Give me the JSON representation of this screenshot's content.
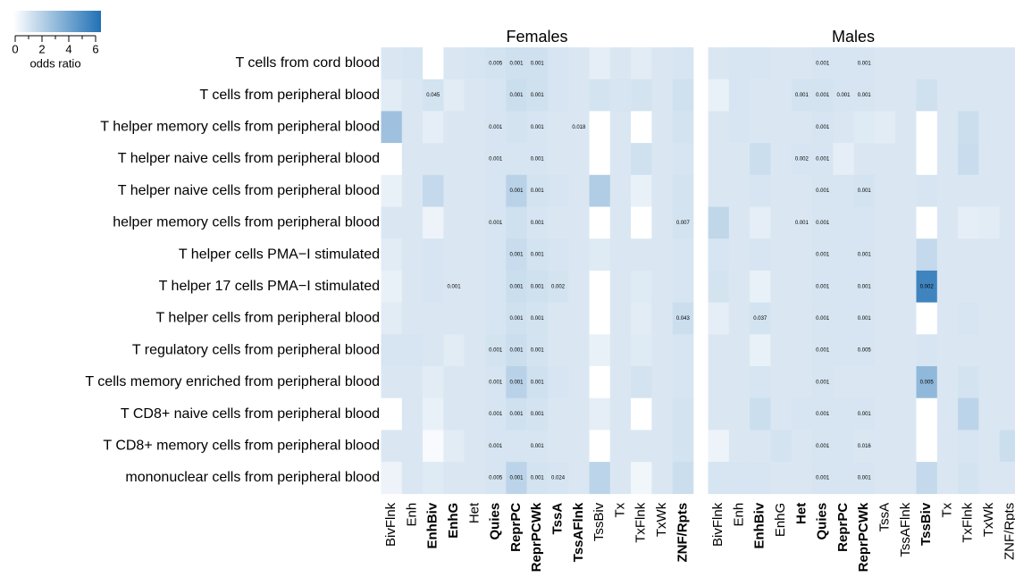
{
  "legend": {
    "label": "odds ratio",
    "lim": [
      0,
      6
    ],
    "ticks": [
      0,
      2,
      4,
      6
    ],
    "colors": [
      "#ffffff",
      "#2171b5"
    ]
  },
  "chart_data": [
    {
      "type": "heatmap",
      "title": "Females",
      "rows": [
        "T cells from cord blood",
        "T cells from peripheral blood",
        "T helper memory cells from peripheral blood",
        "T helper naive cells from peripheral blood",
        "T helper naive cells from peripheral blood",
        "helper memory cells from peripheral blood",
        "T helper cells PMA−I stimulated",
        "T helper 17 cells PMA−I stimulated",
        "T helper cells from peripheral blood",
        "T regulatory cells from peripheral blood",
        "T cells memory enriched from peripheral blood",
        "T CD8+ naive cells from peripheral blood",
        "T CD8+ memory cells from peripheral blood",
        "mononuclear cells from peripheral blood"
      ],
      "columns": [
        "BivFlnk",
        "Enh",
        "EnhBiv",
        "EnhG",
        "Het",
        "Quies",
        "ReprPC",
        "ReprPCWk",
        "TssA",
        "TssAFlnk",
        "TssBiv",
        "Tx",
        "TxFlnk",
        "TxWk",
        "ZNF/Rpts"
      ],
      "bold": [
        false,
        false,
        true,
        true,
        false,
        true,
        true,
        true,
        true,
        true,
        false,
        false,
        false,
        false,
        true
      ],
      "values": [
        [
          1.0,
          1.1,
          0,
          1.0,
          1.1,
          1.2,
          1.3,
          1.3,
          1.1,
          1.0,
          0.7,
          1.0,
          0.8,
          1.0,
          1.1
        ],
        [
          0.8,
          1.0,
          1.2,
          0.8,
          1.0,
          1.1,
          1.4,
          1.3,
          1.1,
          1.0,
          1.2,
          1.1,
          1.2,
          1.0,
          1.3
        ],
        [
          2.6,
          1.0,
          0.7,
          1.0,
          1.0,
          1.1,
          1.2,
          1.1,
          1.0,
          1.0,
          0,
          1.0,
          0,
          1.0,
          1.2
        ],
        [
          0,
          1.0,
          1.0,
          1.0,
          1.0,
          1.1,
          1.1,
          1.1,
          1.0,
          1.0,
          0,
          1.0,
          1.3,
          1.0,
          1.1
        ],
        [
          0.6,
          1.0,
          1.6,
          1.0,
          1.0,
          1.1,
          1.9,
          1.2,
          1.1,
          1.0,
          2.1,
          1.0,
          0.6,
          1.0,
          1.2
        ],
        [
          1.0,
          1.0,
          0.5,
          1.0,
          1.0,
          1.1,
          1.3,
          1.1,
          1.0,
          1.0,
          0,
          1.0,
          0,
          1.0,
          1.2
        ],
        [
          0.8,
          1.0,
          1.1,
          1.0,
          1.0,
          1.1,
          1.5,
          1.2,
          1.1,
          1.0,
          0.9,
          1.0,
          1.0,
          1.0,
          1.1
        ],
        [
          0.6,
          1.0,
          1.1,
          1.0,
          1.0,
          1.1,
          1.4,
          1.3,
          1.2,
          1.0,
          0,
          1.0,
          0.9,
          1.0,
          1.1
        ],
        [
          0.8,
          1.0,
          1.0,
          1.0,
          1.0,
          1.1,
          1.3,
          1.2,
          1.0,
          1.0,
          0,
          1.0,
          0.8,
          1.0,
          1.4
        ],
        [
          1.1,
          1.1,
          1.0,
          0.8,
          1.0,
          1.2,
          1.4,
          1.2,
          1.0,
          1.0,
          0.6,
          1.0,
          0.9,
          1.0,
          1.1
        ],
        [
          1.0,
          1.0,
          0.8,
          1.0,
          1.0,
          1.1,
          1.9,
          1.3,
          1.1,
          1.0,
          0,
          1.0,
          1.2,
          1.0,
          1.1
        ],
        [
          0,
          1.0,
          0.6,
          1.0,
          1.0,
          1.1,
          1.3,
          1.2,
          1.0,
          1.0,
          0.7,
          1.0,
          0,
          1.0,
          1.2
        ],
        [
          1.0,
          1.0,
          0.2,
          0.8,
          1.0,
          1.1,
          1.1,
          1.1,
          1.0,
          1.0,
          0,
          1.0,
          1.0,
          1.0,
          1.2
        ],
        [
          0.5,
          1.0,
          0.9,
          1.0,
          1.0,
          1.1,
          1.8,
          1.2,
          1.1,
          1.0,
          1.8,
          1.0,
          0.4,
          1.0,
          1.4
        ]
      ],
      "annotations": [
        [
          null,
          null,
          null,
          null,
          null,
          "0.005",
          "0.001",
          "0.001",
          null,
          null,
          null,
          null,
          null,
          null,
          null
        ],
        [
          null,
          null,
          "0.045",
          null,
          null,
          null,
          "0.001",
          "0.001",
          null,
          null,
          null,
          null,
          null,
          null,
          null
        ],
        [
          null,
          null,
          null,
          null,
          null,
          "0.001",
          null,
          "0.001",
          null,
          "0.018",
          null,
          null,
          null,
          null,
          null
        ],
        [
          null,
          null,
          null,
          null,
          null,
          "0.001",
          null,
          "0.001",
          null,
          null,
          null,
          null,
          null,
          null,
          null
        ],
        [
          null,
          null,
          null,
          null,
          null,
          null,
          "0.001",
          "0.001",
          null,
          null,
          null,
          null,
          null,
          null,
          null
        ],
        [
          null,
          null,
          null,
          null,
          null,
          "0.001",
          null,
          "0.001",
          null,
          null,
          null,
          null,
          null,
          null,
          "0.007"
        ],
        [
          null,
          null,
          null,
          null,
          null,
          null,
          "0.001",
          "0.001",
          null,
          null,
          null,
          null,
          null,
          null,
          null
        ],
        [
          null,
          null,
          null,
          "0.001",
          null,
          null,
          "0.001",
          "0.001",
          "0.002",
          null,
          null,
          null,
          null,
          null,
          null
        ],
        [
          null,
          null,
          null,
          null,
          null,
          null,
          "0.001",
          "0.001",
          null,
          null,
          null,
          null,
          null,
          null,
          "0.043"
        ],
        [
          null,
          null,
          null,
          null,
          null,
          "0.001",
          "0.001",
          "0.001",
          null,
          null,
          null,
          null,
          null,
          null,
          null
        ],
        [
          null,
          null,
          null,
          null,
          null,
          "0.001",
          "0.001",
          "0.001",
          null,
          null,
          null,
          null,
          null,
          null,
          null
        ],
        [
          null,
          null,
          null,
          null,
          null,
          "0.001",
          "0.001",
          "0.001",
          null,
          null,
          null,
          null,
          null,
          null,
          null
        ],
        [
          null,
          null,
          null,
          null,
          null,
          "0.001",
          null,
          "0.001",
          null,
          null,
          null,
          null,
          null,
          null,
          null
        ],
        [
          null,
          null,
          null,
          null,
          null,
          "0.005",
          "0.001",
          "0.001",
          "0.024",
          null,
          null,
          null,
          null,
          null,
          null
        ]
      ]
    },
    {
      "type": "heatmap",
      "title": "Males",
      "columns": [
        "BivFlnk",
        "Enh",
        "EnhBiv",
        "EnhG",
        "Het",
        "Quies",
        "ReprPC",
        "ReprPCWk",
        "TssA",
        "TssAFlnk",
        "TssBiv",
        "Tx",
        "TxFlnk",
        "TxWk",
        "ZNF/Rpts"
      ],
      "bold": [
        false,
        false,
        true,
        false,
        true,
        true,
        true,
        true,
        false,
        false,
        true,
        false,
        false,
        false,
        false
      ],
      "values": [
        [
          1.0,
          1.1,
          1.1,
          1.0,
          1.0,
          1.1,
          1.1,
          1.1,
          1.0,
          1.0,
          1.0,
          1.0,
          1.0,
          1.0,
          1.0
        ],
        [
          0.6,
          1.1,
          1.0,
          1.0,
          1.2,
          1.2,
          1.1,
          1.1,
          1.0,
          1.0,
          1.3,
          1.0,
          1.0,
          1.0,
          1.0
        ],
        [
          1.0,
          1.1,
          1.0,
          1.0,
          1.0,
          1.1,
          1.0,
          0.9,
          0.8,
          1.0,
          0,
          1.0,
          1.4,
          1.0,
          1.0
        ],
        [
          1.0,
          1.0,
          1.4,
          1.0,
          1.1,
          1.1,
          0.7,
          1.0,
          1.0,
          1.0,
          0,
          1.0,
          1.5,
          1.0,
          1.0
        ],
        [
          1.0,
          1.0,
          1.1,
          1.0,
          1.0,
          1.1,
          1.1,
          1.2,
          1.0,
          1.0,
          1.1,
          1.0,
          1.0,
          1.0,
          1.0
        ],
        [
          1.7,
          1.0,
          0.7,
          1.0,
          1.0,
          1.1,
          1.1,
          1.1,
          1.0,
          1.0,
          0,
          1.0,
          0.7,
          0.8,
          1.0
        ],
        [
          1.1,
          1.0,
          1.1,
          1.0,
          1.0,
          1.1,
          1.1,
          1.1,
          1.0,
          1.0,
          1.6,
          1.0,
          1.0,
          1.0,
          1.0
        ],
        [
          1.2,
          1.0,
          0.6,
          1.0,
          1.0,
          1.1,
          1.1,
          1.1,
          1.0,
          1.0,
          5.2,
          1.0,
          1.0,
          1.0,
          1.0
        ],
        [
          0.7,
          1.0,
          1.2,
          1.0,
          1.0,
          1.1,
          1.1,
          1.1,
          1.0,
          1.0,
          0,
          1.0,
          1.1,
          1.0,
          1.0
        ],
        [
          1.0,
          1.0,
          0.6,
          1.0,
          1.0,
          1.1,
          1.1,
          1.1,
          1.0,
          1.0,
          1.1,
          1.0,
          1.0,
          1.0,
          1.0
        ],
        [
          1.0,
          1.0,
          1.1,
          1.0,
          1.0,
          1.1,
          1.0,
          1.0,
          1.0,
          1.0,
          3.0,
          1.0,
          1.2,
          1.0,
          1.0
        ],
        [
          1.0,
          1.0,
          1.4,
          1.0,
          1.1,
          1.1,
          1.1,
          1.1,
          1.0,
          1.0,
          0,
          1.0,
          1.8,
          1.0,
          1.0
        ],
        [
          0.5,
          1.0,
          1.0,
          1.2,
          1.0,
          1.1,
          1.1,
          1.0,
          1.0,
          1.0,
          0,
          1.0,
          1.1,
          1.0,
          1.4
        ],
        [
          1.1,
          1.1,
          1.1,
          1.0,
          1.0,
          1.1,
          1.1,
          1.1,
          1.0,
          1.0,
          1.6,
          1.0,
          1.2,
          1.0,
          1.0
        ]
      ],
      "annotations": [
        [
          null,
          null,
          null,
          null,
          null,
          "0.001",
          null,
          "0.001",
          null,
          null,
          null,
          null,
          null,
          null,
          null
        ],
        [
          null,
          null,
          null,
          null,
          "0.001",
          "0.001",
          "0.001",
          "0.001",
          null,
          null,
          null,
          null,
          null,
          null,
          null
        ],
        [
          null,
          null,
          null,
          null,
          null,
          "0.001",
          null,
          null,
          null,
          null,
          null,
          null,
          null,
          null,
          null
        ],
        [
          null,
          null,
          null,
          null,
          "0.002",
          "0.001",
          null,
          null,
          null,
          null,
          null,
          null,
          null,
          null,
          null
        ],
        [
          null,
          null,
          null,
          null,
          null,
          "0.001",
          null,
          "0.001",
          null,
          null,
          null,
          null,
          null,
          null,
          null
        ],
        [
          null,
          null,
          null,
          null,
          "0.001",
          "0.001",
          null,
          null,
          null,
          null,
          null,
          null,
          null,
          null,
          null
        ],
        [
          null,
          null,
          null,
          null,
          null,
          "0.001",
          null,
          "0.001",
          null,
          null,
          null,
          null,
          null,
          null,
          null
        ],
        [
          null,
          null,
          null,
          null,
          null,
          "0.001",
          null,
          "0.001",
          null,
          null,
          "0.002",
          null,
          null,
          null,
          null
        ],
        [
          null,
          null,
          "0.037",
          null,
          null,
          "0.001",
          null,
          "0.001",
          null,
          null,
          null,
          null,
          null,
          null,
          null
        ],
        [
          null,
          null,
          null,
          null,
          null,
          "0.001",
          null,
          "0.005",
          null,
          null,
          null,
          null,
          null,
          null,
          null
        ],
        [
          null,
          null,
          null,
          null,
          null,
          "0.001",
          null,
          null,
          null,
          null,
          "0.005",
          null,
          null,
          null,
          null
        ],
        [
          null,
          null,
          null,
          null,
          null,
          "0.001",
          null,
          "0.001",
          null,
          null,
          null,
          null,
          null,
          null,
          null
        ],
        [
          null,
          null,
          null,
          null,
          null,
          "0.001",
          null,
          "0.016",
          null,
          null,
          null,
          null,
          null,
          null,
          null
        ],
        [
          null,
          null,
          null,
          null,
          null,
          "0.001",
          null,
          "0.001",
          null,
          null,
          null,
          null,
          null,
          null,
          null
        ]
      ]
    }
  ]
}
